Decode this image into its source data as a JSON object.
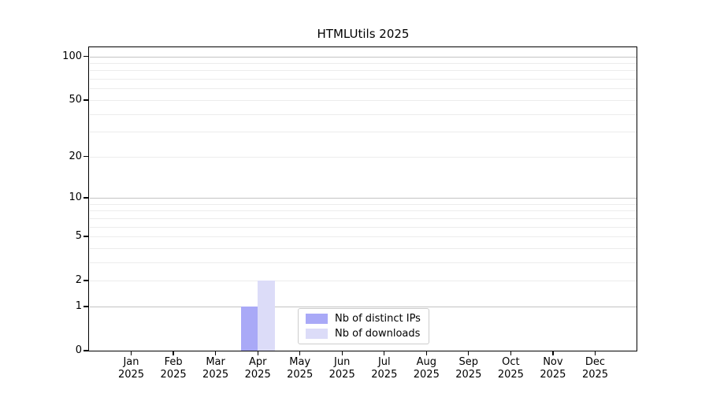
{
  "chart_data": {
    "type": "bar",
    "title": "HTMLUtils 2025",
    "categories": [
      "Jan",
      "Feb",
      "Mar",
      "Apr",
      "May",
      "Jun",
      "Jul",
      "Aug",
      "Sep",
      "Oct",
      "Nov",
      "Dec"
    ],
    "x_year_label": "2025",
    "series": [
      {
        "name": "Nb of distinct IPs",
        "color": "#a9a9f7",
        "values": [
          0,
          0,
          0,
          1,
          0,
          0,
          0,
          0,
          0,
          0,
          0,
          0
        ]
      },
      {
        "name": "Nb of downloads",
        "color": "#dcdcf8",
        "values": [
          0,
          0,
          0,
          2,
          0,
          0,
          0,
          0,
          0,
          0,
          0,
          0
        ]
      }
    ],
    "yticks": [
      0,
      1,
      2,
      5,
      10,
      20,
      50,
      100
    ],
    "major_gridlines": [
      1,
      10,
      100
    ],
    "minor_gridlines": [
      2,
      3,
      4,
      5,
      6,
      7,
      8,
      9,
      20,
      30,
      40,
      50,
      60,
      70,
      80,
      90
    ],
    "y_scale": "log10(value+1)",
    "ylim": [
      0,
      117
    ],
    "grid": true,
    "legend_position": "lower center"
  }
}
